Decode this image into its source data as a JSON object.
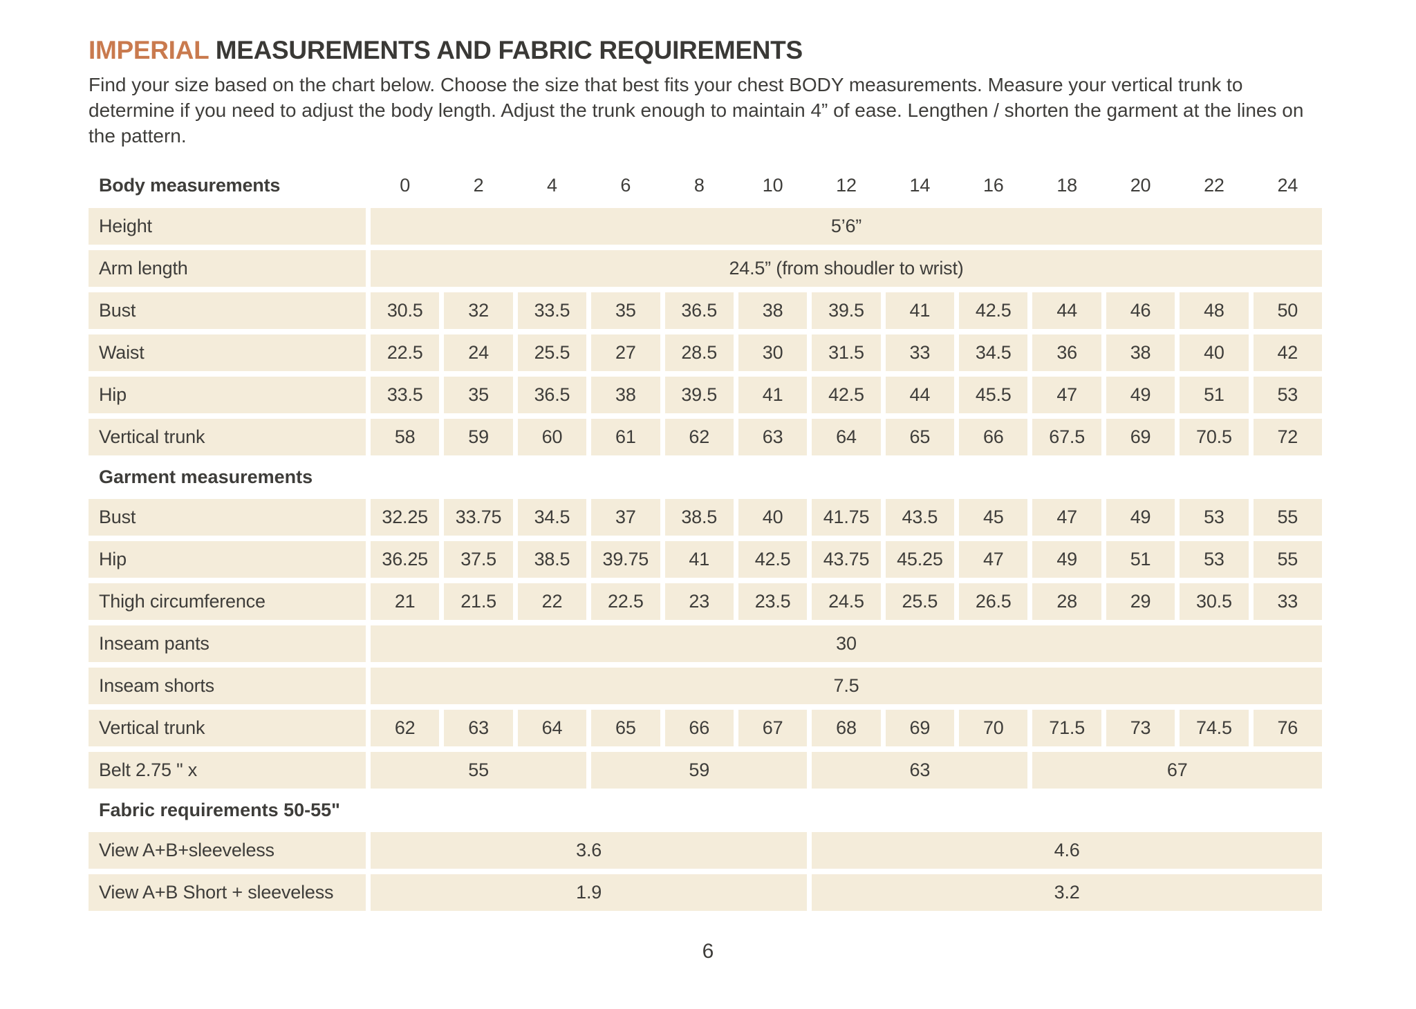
{
  "header": {
    "title_accent": "IMPERIAL",
    "title_rest": "MEASUREMENTS AND FABRIC REQUIREMENTS",
    "intro": "Find your size based on the chart below. Choose the size that best fits your chest BODY measurements. Measure your vertical trunk to determine if you need to adjust the body length. Adjust the trunk enough to maintain 4” of ease. Lengthen / shorten the garment at the lines on the pattern."
  },
  "colors": {
    "accent": "#c97a4e",
    "cell_background": "#f4ecda",
    "text": "#3e3d3a"
  },
  "table": {
    "header": {
      "label": "Body measurements",
      "sizes": [
        "0",
        "2",
        "4",
        "6",
        "8",
        "10",
        "12",
        "14",
        "16",
        "18",
        "20",
        "22",
        "24"
      ]
    },
    "body_rows": [
      {
        "label": "Height",
        "span_value": "5’6”"
      },
      {
        "label": "Arm length",
        "span_value": "24.5” (from shoudler to wrist)"
      },
      {
        "label": "Bust",
        "values": [
          "30.5",
          "32",
          "33.5",
          "35",
          "36.5",
          "38",
          "39.5",
          "41",
          "42.5",
          "44",
          "46",
          "48",
          "50"
        ]
      },
      {
        "label": "Waist",
        "values": [
          "22.5",
          "24",
          "25.5",
          "27",
          "28.5",
          "30",
          "31.5",
          "33",
          "34.5",
          "36",
          "38",
          "40",
          "42"
        ]
      },
      {
        "label": "Hip",
        "values": [
          "33.5",
          "35",
          "36.5",
          "38",
          "39.5",
          "41",
          "42.5",
          "44",
          "45.5",
          "47",
          "49",
          "51",
          "53"
        ]
      },
      {
        "label": "Vertical trunk",
        "values": [
          "58",
          "59",
          "60",
          "61",
          "62",
          "63",
          "64",
          "65",
          "66",
          "67.5",
          "69",
          "70.5",
          "72"
        ]
      }
    ],
    "garment_heading": "Garment measurements",
    "garment_rows": [
      {
        "label": "Bust",
        "values": [
          "32.25",
          "33.75",
          "34.5",
          "37",
          "38.5",
          "40",
          "41.75",
          "43.5",
          "45",
          "47",
          "49",
          "53",
          "55"
        ]
      },
      {
        "label": "Hip",
        "values": [
          "36.25",
          "37.5",
          "38.5",
          "39.75",
          "41",
          "42.5",
          "43.75",
          "45.25",
          "47",
          "49",
          "51",
          "53",
          "55"
        ]
      },
      {
        "label": "Thigh circumference",
        "values": [
          "21",
          "21.5",
          "22",
          "22.5",
          "23",
          "23.5",
          "24.5",
          "25.5",
          "26.5",
          "28",
          "29",
          "30.5",
          "33"
        ]
      },
      {
        "label": "Inseam pants",
        "span_value": "30"
      },
      {
        "label": "Inseam shorts",
        "span_value": "7.5"
      },
      {
        "label": "Vertical trunk",
        "values": [
          "62",
          "63",
          "64",
          "65",
          "66",
          "67",
          "68",
          "69",
          "70",
          "71.5",
          "73",
          "74.5",
          "76"
        ]
      },
      {
        "label": "Belt 2.75 \" x",
        "spans": [
          {
            "cols": 3,
            "value": "55"
          },
          {
            "cols": 3,
            "value": "59"
          },
          {
            "cols": 3,
            "value": "63"
          },
          {
            "cols": 4,
            "value": "67"
          }
        ]
      }
    ],
    "fabric_heading": "Fabric requirements 50-55\"",
    "fabric_rows": [
      {
        "label": "View A+B+sleeveless",
        "spans": [
          {
            "cols": 6,
            "value": "3.6"
          },
          {
            "cols": 7,
            "value": "4.6"
          }
        ]
      },
      {
        "label": "View A+B Short + sleeveless",
        "spans": [
          {
            "cols": 6,
            "value": "1.9"
          },
          {
            "cols": 7,
            "value": "3.2"
          }
        ]
      }
    ]
  },
  "footer": {
    "page_number": "6"
  }
}
